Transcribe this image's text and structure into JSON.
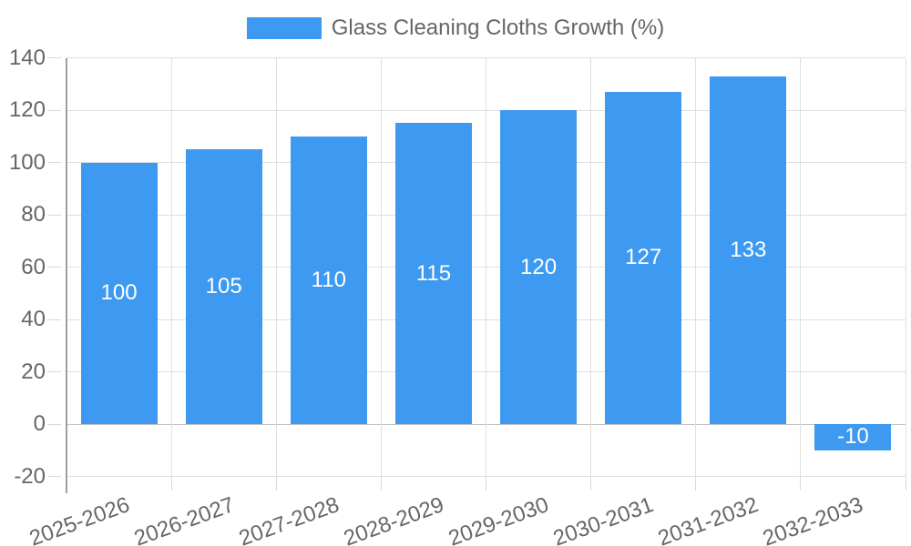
{
  "legend": {
    "label": "Glass Cleaning Cloths Growth (%)"
  },
  "chart_data": {
    "type": "bar",
    "title": "Glass Cleaning Cloths Growth (%)",
    "categories": [
      "2025-2026",
      "2026-2027",
      "2027-2028",
      "2028-2029",
      "2029-2030",
      "2030-2031",
      "2031-2032",
      "2032-2033"
    ],
    "values": [
      100,
      105,
      110,
      115,
      120,
      127,
      133,
      -10
    ],
    "xlabel": "",
    "ylabel": "",
    "ylim": [
      -20,
      140
    ],
    "yticks": [
      -20,
      0,
      20,
      40,
      60,
      80,
      100,
      120,
      140
    ],
    "grid": true,
    "legend_position": "top",
    "x_label_rotation_deg": -20,
    "colors": {
      "bar": "#3D9AF0",
      "value_label": "#ffffff",
      "axis_label": "#666666",
      "gridline": "#dfdfdf",
      "zero_line": "#c3c3c3",
      "axis_line": "#9e9e9e",
      "tick": "#d9d9d9"
    }
  }
}
